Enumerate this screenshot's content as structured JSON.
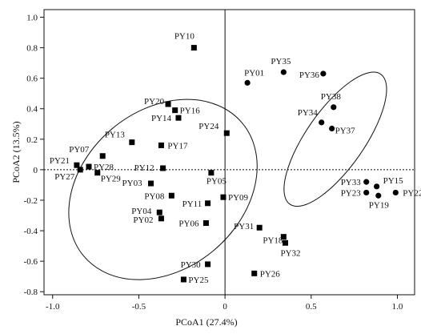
{
  "chart_data": {
    "type": "scatter",
    "title": "",
    "xlabel": "PCoA1 (27.4%)",
    "ylabel": "PCoA2 (13.5%)",
    "xlim": [
      -1.05,
      1.1
    ],
    "ylim": [
      -0.82,
      1.05
    ],
    "xticks": [
      -1.0,
      -0.5,
      0,
      0.5,
      1.0
    ],
    "xtick_labels": [
      "-1.0",
      "-0.5",
      "0",
      "0.5",
      "1.0"
    ],
    "yticks": [
      -0.8,
      -0.6,
      -0.4,
      -0.2,
      0,
      0.2,
      0.4,
      0.6,
      0.8,
      1.0
    ],
    "ytick_labels": [
      "-0.8",
      "-0.6",
      "-0.4",
      "-0.2",
      "0",
      "0.2",
      "0.4",
      "0.6",
      "0.8",
      "1.0"
    ],
    "grid": false,
    "reference_lines": {
      "x": 0,
      "y": 0,
      "style": "dotted"
    },
    "series": [
      {
        "marker": "square",
        "points": [
          {
            "label": "PY02",
            "x": -0.37,
            "y": -0.32
          },
          {
            "label": "PY03",
            "x": -0.43,
            "y": -0.09
          },
          {
            "label": "PY04",
            "x": -0.38,
            "y": -0.28
          },
          {
            "label": "PY05",
            "x": -0.08,
            "y": -0.02
          },
          {
            "label": "PY06",
            "x": -0.11,
            "y": -0.35
          },
          {
            "label": "PY07",
            "x": -0.71,
            "y": 0.09
          },
          {
            "label": "PY08",
            "x": -0.31,
            "y": -0.17
          },
          {
            "label": "PY09",
            "x": -0.01,
            "y": -0.18
          },
          {
            "label": "PY10",
            "x": -0.18,
            "y": 0.8
          },
          {
            "label": "PY11",
            "x": -0.1,
            "y": -0.22
          },
          {
            "label": "PY12",
            "x": -0.36,
            "y": 0.01
          },
          {
            "label": "PY13",
            "x": -0.54,
            "y": 0.18
          },
          {
            "label": "PY14",
            "x": -0.27,
            "y": 0.34
          },
          {
            "label": "PY16",
            "x": -0.29,
            "y": 0.39
          },
          {
            "label": "PY17",
            "x": -0.37,
            "y": 0.16
          },
          {
            "label": "PY20",
            "x": -0.33,
            "y": 0.43
          },
          {
            "label": "PY21",
            "x": -0.86,
            "y": 0.03
          },
          {
            "label": "PY24",
            "x": 0.01,
            "y": 0.24
          },
          {
            "label": "PY25",
            "x": -0.24,
            "y": -0.72
          },
          {
            "label": "PY26",
            "x": 0.17,
            "y": -0.68
          },
          {
            "label": "PY27",
            "x": -0.84,
            "y": 0.0
          },
          {
            "label": "PY28",
            "x": -0.79,
            "y": 0.02
          },
          {
            "label": "PY29",
            "x": -0.74,
            "y": -0.02
          },
          {
            "label": "PY30",
            "x": -0.1,
            "y": -0.62
          },
          {
            "label": "PY31",
            "x": 0.2,
            "y": -0.38
          },
          {
            "label": "PY18",
            "x": 0.34,
            "y": -0.44
          },
          {
            "label": "PY32",
            "x": 0.35,
            "y": -0.48
          }
        ]
      },
      {
        "marker": "circle",
        "points": [
          {
            "label": "PY01",
            "x": 0.13,
            "y": 0.57
          },
          {
            "label": "PY35",
            "x": 0.34,
            "y": 0.64
          },
          {
            "label": "PY36",
            "x": 0.57,
            "y": 0.63
          },
          {
            "label": "PY38",
            "x": 0.63,
            "y": 0.41
          },
          {
            "label": "PY34",
            "x": 0.56,
            "y": 0.31
          },
          {
            "label": "PY37",
            "x": 0.62,
            "y": 0.27
          },
          {
            "label": "PY33",
            "x": 0.82,
            "y": -0.08
          },
          {
            "label": "PY15",
            "x": 0.88,
            "y": -0.11
          },
          {
            "label": "PY23",
            "x": 0.82,
            "y": -0.15
          },
          {
            "label": "PY19",
            "x": 0.89,
            "y": -0.17
          },
          {
            "label": "PY22",
            "x": 0.99,
            "y": -0.15
          }
        ]
      }
    ],
    "ellipses": [
      {
        "center": [
          -0.36,
          -0.13
        ],
        "semi_axes": [
          0.6,
          0.52
        ],
        "rotation_deg": -40
      },
      {
        "center": [
          0.64,
          0.2
        ],
        "semi_axes": [
          0.46,
          0.19
        ],
        "rotation_deg": -55
      }
    ]
  }
}
